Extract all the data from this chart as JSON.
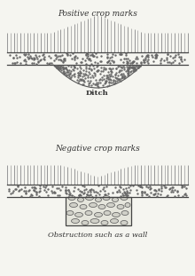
{
  "bg_color": "#f5f5f0",
  "title_top": "Positive crop marks",
  "title_bottom": "Negative crop marks",
  "label_top": "Ditch",
  "label_bottom": "Obstruction such as a wall",
  "title_fontsize": 6.5,
  "label_fontsize": 6.0
}
